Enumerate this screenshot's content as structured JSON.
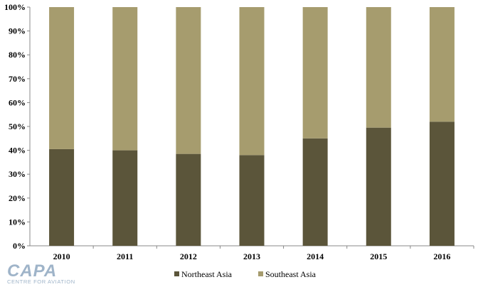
{
  "chart_data": {
    "type": "bar",
    "stacked": true,
    "categories": [
      "2010",
      "2011",
      "2012",
      "2013",
      "2014",
      "2015",
      "2016"
    ],
    "series": [
      {
        "name": "Northeast Asia",
        "values": [
          40.5,
          40,
          38.5,
          38,
          45,
          49.5,
          52
        ],
        "color": "#5b553a"
      },
      {
        "name": "Southeast Asia",
        "values": [
          59.5,
          60,
          61.5,
          62,
          55,
          50.5,
          48
        ],
        "color": "#a69c6e"
      }
    ],
    "y_ticks": [
      "0%",
      "10%",
      "20%",
      "30%",
      "40%",
      "50%",
      "60%",
      "70%",
      "80%",
      "90%",
      "100%"
    ],
    "ylim": [
      0,
      100
    ],
    "grid": false,
    "legend_position": "bottom-center",
    "title": "",
    "xlabel": "",
    "ylabel": ""
  },
  "logo": {
    "name": "CAPA",
    "subtitle": "CENTRE FOR AVIATION"
  }
}
